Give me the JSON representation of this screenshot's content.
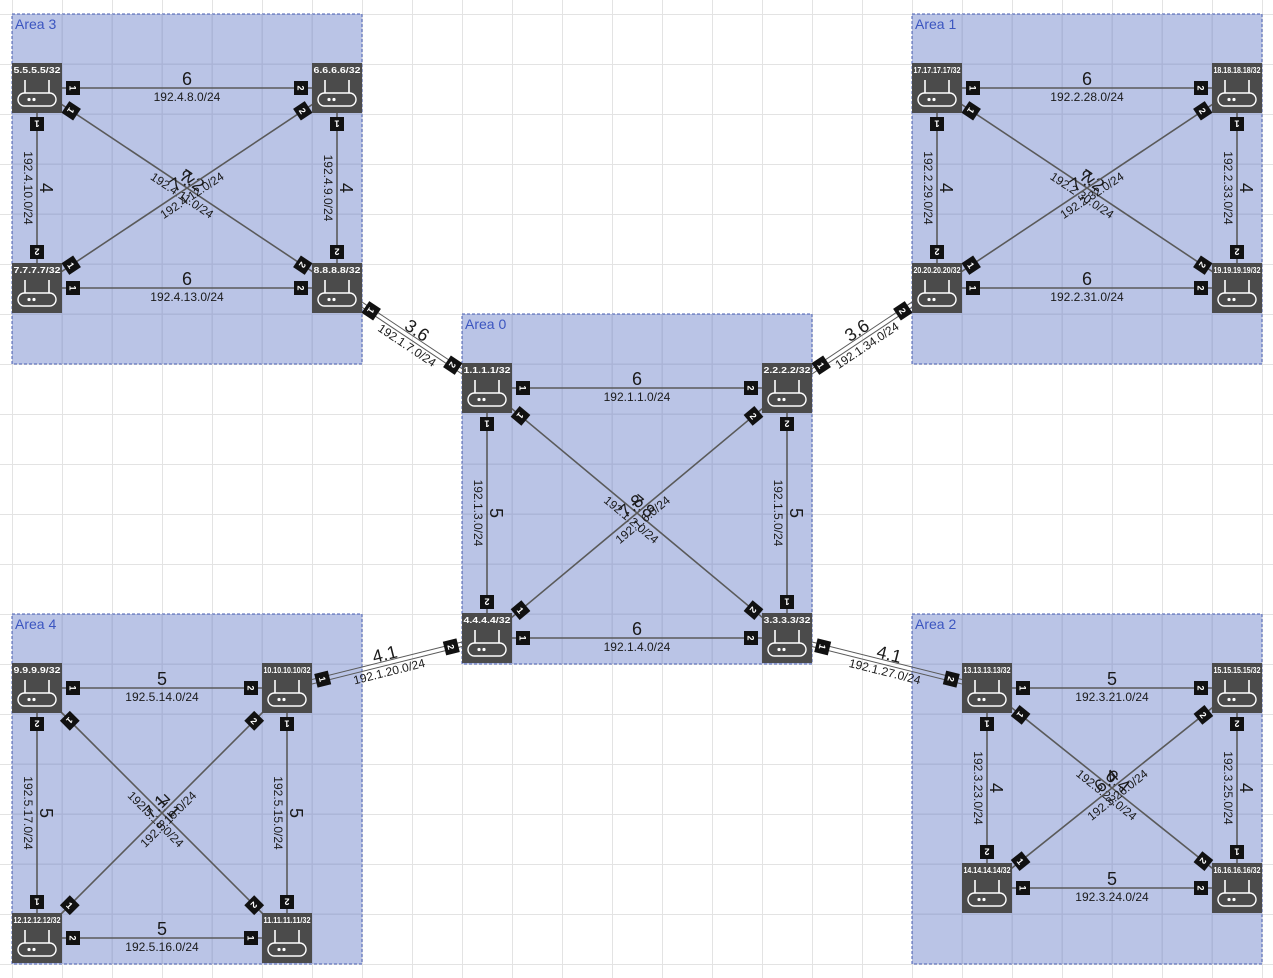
{
  "areas": [
    {
      "id": "a3",
      "label": "Area 3"
    },
    {
      "id": "a1",
      "label": "Area 1"
    },
    {
      "id": "a0",
      "label": "Area 0"
    },
    {
      "id": "a4",
      "label": "Area 4"
    },
    {
      "id": "a2",
      "label": "Area 2"
    }
  ],
  "routers": [
    {
      "id": "r5",
      "label": "5.5.5.5/32"
    },
    {
      "id": "r6",
      "label": "6.6.6.6/32"
    },
    {
      "id": "r7",
      "label": "7.7.7.7/32"
    },
    {
      "id": "r8",
      "label": "8.8.8.8/32"
    },
    {
      "id": "r17",
      "label": "17.17.17.17/32"
    },
    {
      "id": "r18",
      "label": "18.18.18.18/32"
    },
    {
      "id": "r20",
      "label": "20.20.20.20/32"
    },
    {
      "id": "r19",
      "label": "19.19.19.19/32"
    },
    {
      "id": "r1",
      "label": "1.1.1.1/32"
    },
    {
      "id": "r2",
      "label": "2.2.2.2/32"
    },
    {
      "id": "r4",
      "label": "4.4.4.4/32"
    },
    {
      "id": "r3",
      "label": "3.3.3.3/32"
    },
    {
      "id": "r9",
      "label": "9.9.9.9/32"
    },
    {
      "id": "r10",
      "label": "10.10.10.10/32"
    },
    {
      "id": "r12",
      "label": "12.12.12.12/32"
    },
    {
      "id": "r11",
      "label": "11.11.11.11/32"
    },
    {
      "id": "r13",
      "label": "13.13.13.13/32"
    },
    {
      "id": "r15",
      "label": "15.15.15.15/32"
    },
    {
      "id": "r14",
      "label": "14.14.14.14/32"
    },
    {
      "id": "r16",
      "label": "16.16.16.16/32"
    }
  ],
  "links": [
    {
      "id": "l1",
      "a": "r5",
      "b": "r6",
      "cost": "6",
      "network": "192.4.8.0/24",
      "pa": "1",
      "pb": "2"
    },
    {
      "id": "l2",
      "a": "r7",
      "b": "r8",
      "cost": "6",
      "network": "192.4.13.0/24",
      "pa": "1",
      "pb": "2"
    },
    {
      "id": "l3",
      "a": "r5",
      "b": "r7",
      "cost": "4",
      "network": "192.4.10.0/24",
      "pa": "1",
      "pb": "2"
    },
    {
      "id": "l4",
      "a": "r6",
      "b": "r8",
      "cost": "4",
      "network": "192.4.9.0/24",
      "pa": "1",
      "pb": "2"
    },
    {
      "id": "l5",
      "a": "r5",
      "b": "r8",
      "cost": "7.2",
      "network": "192.4.11.0/24",
      "pa": "1",
      "pb": "2"
    },
    {
      "id": "l6",
      "a": "r7",
      "b": "r6",
      "cost": "7.2",
      "network": "192.4.12.0/24",
      "pa": "1",
      "pb": "2"
    },
    {
      "id": "l7",
      "a": "r17",
      "b": "r18",
      "cost": "6",
      "network": "192.2.28.0/24",
      "pa": "1",
      "pb": "2"
    },
    {
      "id": "l8",
      "a": "r20",
      "b": "r19",
      "cost": "6",
      "network": "192.2.31.0/24",
      "pa": "1",
      "pb": "2"
    },
    {
      "id": "l9",
      "a": "r17",
      "b": "r20",
      "cost": "4",
      "network": "192.2.29.0/24",
      "pa": "1",
      "pb": "2"
    },
    {
      "id": "l10",
      "a": "r18",
      "b": "r19",
      "cost": "4",
      "network": "192.2.33.0/24",
      "pa": "1",
      "pb": "2"
    },
    {
      "id": "l11",
      "a": "r17",
      "b": "r19",
      "cost": "7.2",
      "network": "192.2.30.0/24",
      "pa": "1",
      "pb": "2"
    },
    {
      "id": "l12",
      "a": "r20",
      "b": "r18",
      "cost": "7.2",
      "network": "192.2.32.0/24",
      "pa": "1",
      "pb": "2"
    },
    {
      "id": "l13",
      "a": "r1",
      "b": "r2",
      "cost": "6",
      "network": "192.1.1.0/24",
      "pa": "1",
      "pb": "2"
    },
    {
      "id": "l14",
      "a": "r4",
      "b": "r3",
      "cost": "6",
      "network": "192.1.4.0/24",
      "pa": "1",
      "pb": "2"
    },
    {
      "id": "l15",
      "a": "r1",
      "b": "r4",
      "cost": "5",
      "network": "192.1.3.0/24",
      "pa": "1",
      "pb": "2"
    },
    {
      "id": "l16",
      "a": "r2",
      "b": "r3",
      "cost": "5",
      "network": "192.1.5.0/24",
      "pa": "2",
      "pb": "1"
    },
    {
      "id": "l17",
      "a": "r1",
      "b": "r3",
      "cost": "7.8",
      "network": "192.1.2.0/24",
      "pa": "1",
      "pb": "2"
    },
    {
      "id": "l18",
      "a": "r4",
      "b": "r2",
      "cost": "7.8",
      "network": "192.1.6.0/24",
      "pa": "1",
      "pb": "2"
    },
    {
      "id": "l19",
      "a": "r9",
      "b": "r10",
      "cost": "5",
      "network": "192.5.14.0/24",
      "pa": "1",
      "pb": "2"
    },
    {
      "id": "l20",
      "a": "r12",
      "b": "r11",
      "cost": "5",
      "network": "192.5.16.0/24",
      "pa": "2",
      "pb": "1"
    },
    {
      "id": "l21",
      "a": "r9",
      "b": "r12",
      "cost": "5",
      "network": "192.5.17.0/24",
      "pa": "2",
      "pb": "1"
    },
    {
      "id": "l22",
      "a": "r10",
      "b": "r11",
      "cost": "5",
      "network": "192.5.15.0/24",
      "pa": "1",
      "pb": "2"
    },
    {
      "id": "l23",
      "a": "r9",
      "b": "r11",
      "cost": "7.1",
      "network": "192.5.18.0/24",
      "pa": "1",
      "pb": "2"
    },
    {
      "id": "l24",
      "a": "r12",
      "b": "r10",
      "cost": "7.1",
      "network": "192.5.19.0/24",
      "pa": "1",
      "pb": "2"
    },
    {
      "id": "l25",
      "a": "r13",
      "b": "r15",
      "cost": "5",
      "network": "192.3.21.0/24",
      "pa": "1",
      "pb": "2"
    },
    {
      "id": "l26",
      "a": "r14",
      "b": "r16",
      "cost": "5",
      "network": "192.3.24.0/24",
      "pa": "1",
      "pb": "2"
    },
    {
      "id": "l27",
      "a": "r13",
      "b": "r14",
      "cost": "4",
      "network": "192.3.23.0/24",
      "pa": "1",
      "pb": "2"
    },
    {
      "id": "l28",
      "a": "r15",
      "b": "r16",
      "cost": "4",
      "network": "192.3.25.0/24",
      "pa": "2",
      "pb": "1"
    },
    {
      "id": "l29",
      "a": "r13",
      "b": "r16",
      "cost": "6.4",
      "network": "192.3.22.0/24",
      "pa": "1",
      "pb": "2"
    },
    {
      "id": "l30",
      "a": "r14",
      "b": "r15",
      "cost": "6.4",
      "network": "192.3.26.0/24",
      "pa": "1",
      "pb": "2"
    },
    {
      "id": "l31",
      "a": "r8",
      "b": "r1",
      "cost": "3.6",
      "network": "192.1.7.0/24",
      "pa": "1",
      "pb": "2",
      "double": true
    },
    {
      "id": "l32",
      "a": "r2",
      "b": "r20",
      "cost": "3.6",
      "network": "192.1.34.0/24",
      "pa": "1",
      "pb": "2",
      "double": true
    },
    {
      "id": "l33",
      "a": "r10",
      "b": "r4",
      "cost": "4.1",
      "network": "192.1.20.0/24",
      "pa": "1",
      "pb": "2",
      "double": true
    },
    {
      "id": "l34",
      "a": "r3",
      "b": "r13",
      "cost": "4.1",
      "network": "192.1.27.0/24",
      "pa": "1",
      "pb": "2",
      "double": true
    }
  ],
  "colors": {
    "area_fill": "#8f9fd6",
    "area_border": "#4a5fb5",
    "area_label": "#3b55c0",
    "router": "#4b4b4b",
    "port": "#111111",
    "link": "#5a5a5a"
  },
  "icons": {
    "router": "router-icon",
    "port": "port-badge"
  }
}
